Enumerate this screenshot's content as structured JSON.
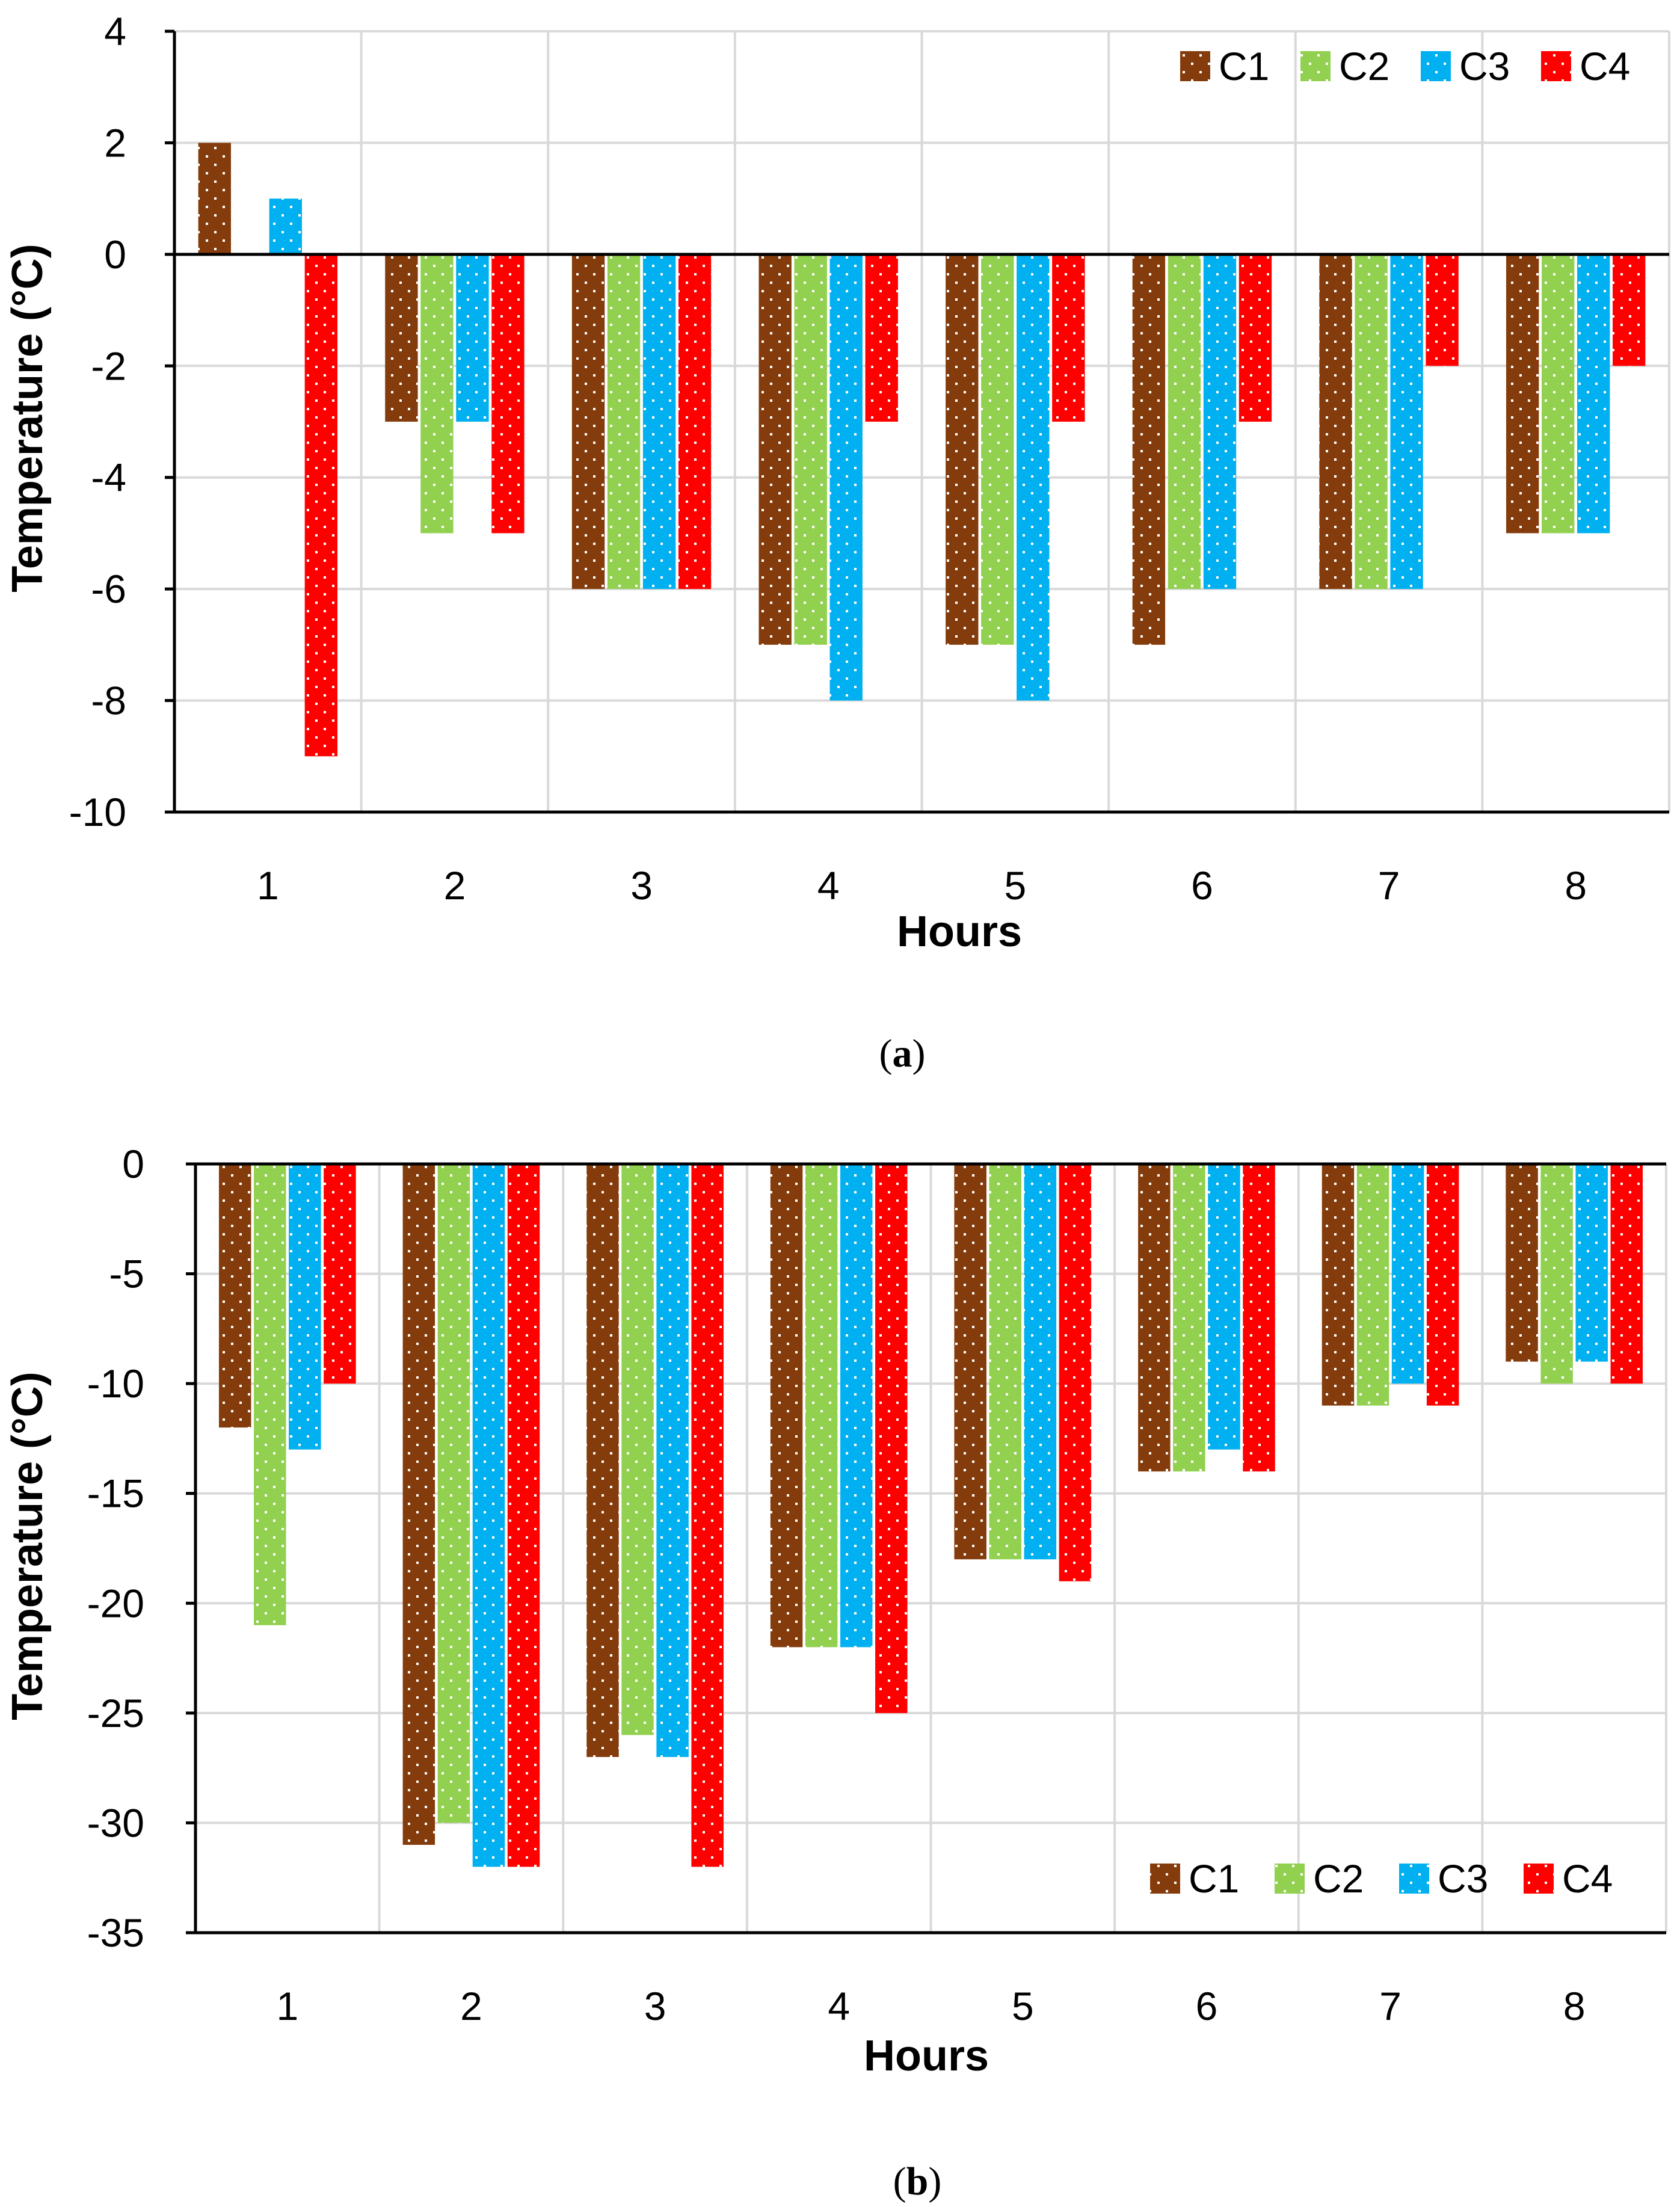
{
  "colors": {
    "C1": "#843C0C",
    "C2": "#92D050",
    "C3": "#00B0F0",
    "C4": "#FF0000",
    "grid": "#D9D9D9",
    "dots": "#FFFFFF",
    "axis": "#000000"
  },
  "chart_data": [
    {
      "id": "a",
      "type": "bar",
      "caption_letter": "a",
      "xlabel": "Hours",
      "ylabel": "Temperature (°C)",
      "categories": [
        "1",
        "2",
        "3",
        "4",
        "5",
        "6",
        "7",
        "8"
      ],
      "ylim": [
        -10,
        4
      ],
      "yticks": [
        4,
        2,
        0,
        -2,
        -4,
        -6,
        -8,
        -10
      ],
      "grid": true,
      "legend_position": "top-right",
      "series": [
        {
          "name": "C1",
          "values": [
            2,
            -3,
            -6,
            -7,
            -7,
            -7,
            -6,
            -5
          ]
        },
        {
          "name": "C2",
          "values": [
            0,
            -5,
            -6,
            -7,
            -7,
            -6,
            -6,
            -5
          ]
        },
        {
          "name": "C3",
          "values": [
            1,
            -3,
            -6,
            -8,
            -8,
            -6,
            -6,
            -5
          ]
        },
        {
          "name": "C4",
          "values": [
            -9,
            -5,
            -6,
            -3,
            -3,
            -3,
            -2,
            -2
          ]
        }
      ]
    },
    {
      "id": "b",
      "type": "bar",
      "caption_letter": "b",
      "xlabel": "Hours",
      "ylabel": "Temperature (°C)",
      "categories": [
        "1",
        "2",
        "3",
        "4",
        "5",
        "6",
        "7",
        "8"
      ],
      "ylim": [
        -35,
        0
      ],
      "yticks": [
        0,
        -5,
        -10,
        -15,
        -20,
        -25,
        -30,
        -35
      ],
      "grid": true,
      "legend_position": "bottom-right",
      "series": [
        {
          "name": "C1",
          "values": [
            -12,
            -31,
            -27,
            -22,
            -18,
            -14,
            -11,
            -9
          ]
        },
        {
          "name": "C2",
          "values": [
            -21,
            -30,
            -26,
            -22,
            -18,
            -14,
            -11,
            -10
          ]
        },
        {
          "name": "C3",
          "values": [
            -13,
            -32,
            -27,
            -22,
            -18,
            -13,
            -10,
            -9
          ]
        },
        {
          "name": "C4",
          "values": [
            -10,
            -32,
            -32,
            -25,
            -19,
            -14,
            -11,
            -10
          ]
        }
      ]
    }
  ]
}
